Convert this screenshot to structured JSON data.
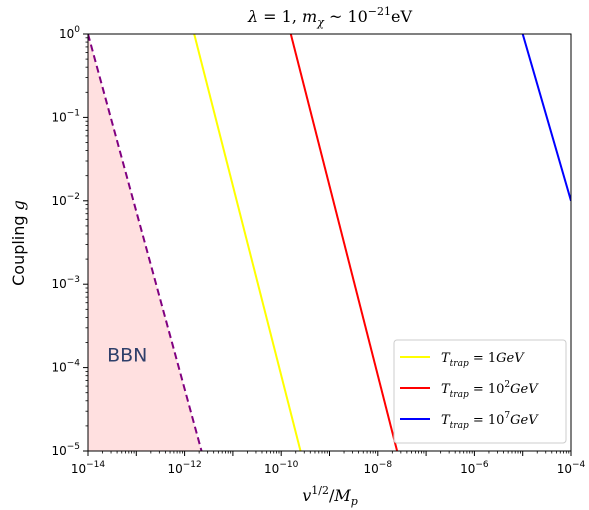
{
  "chart_data": {
    "type": "line",
    "title": {
      "lambda": "λ",
      "eq1": " = 1, ",
      "m": "m",
      "chi": "χ",
      "approx": " ~ 10",
      "exp": "−21",
      "unit": "eV"
    },
    "xlabel": {
      "v": "v",
      "sup": "1/2",
      "slash": "/",
      "M": "M",
      "p": "p"
    },
    "ylabel": {
      "text": "Coupling ",
      "g": "g"
    },
    "xscale": "log",
    "yscale": "log",
    "xlim": [
      1e-14,
      0.0001
    ],
    "ylim": [
      1e-05,
      1
    ],
    "xticks": [
      {
        "value": 1e-14,
        "base": "10",
        "exp": "−14"
      },
      {
        "value": 1e-12,
        "base": "10",
        "exp": "−12"
      },
      {
        "value": 1e-10,
        "base": "10",
        "exp": "−10"
      },
      {
        "value": 1e-08,
        "base": "10",
        "exp": "−8"
      },
      {
        "value": 1e-06,
        "base": "10",
        "exp": "−6"
      },
      {
        "value": 0.0001,
        "base": "10",
        "exp": "−4"
      }
    ],
    "yticks": [
      {
        "value": 1,
        "base": "10",
        "exp": "0"
      },
      {
        "value": 0.1,
        "base": "10",
        "exp": "−1"
      },
      {
        "value": 0.01,
        "base": "10",
        "exp": "−2"
      },
      {
        "value": 0.001,
        "base": "10",
        "exp": "−3"
      },
      {
        "value": 0.0001,
        "base": "10",
        "exp": "−4"
      },
      {
        "value": 1e-05,
        "base": "10",
        "exp": "−5"
      }
    ],
    "grid": false,
    "legend_position": "lower-right",
    "series": [
      {
        "key": "yellow",
        "color": "#ffff00",
        "style": "solid",
        "legend": {
          "T": "T",
          "sub": "trap",
          "eq": " = 1",
          "sup": "",
          "unit": "GeV"
        },
        "x": [
          1.58e-12,
          2.51e-10
        ],
        "y": [
          1,
          1e-05
        ]
      },
      {
        "key": "red",
        "color": "#ff0000",
        "style": "solid",
        "legend": {
          "T": "T",
          "sub": "trap",
          "eq": " = 10",
          "sup": "2",
          "unit": "GeV"
        },
        "x": [
          1.58e-10,
          2.51e-08
        ],
        "y": [
          1,
          1e-05
        ]
      },
      {
        "key": "blue",
        "color": "#0000ff",
        "style": "solid",
        "legend": {
          "T": "T",
          "sub": "trap",
          "eq": " = 10",
          "sup": "7",
          "unit": "GeV"
        },
        "x": [
          1e-05,
          0.0001
        ],
        "y": [
          1,
          0.01
        ]
      },
      {
        "key": "bbn-boundary",
        "color": "#800080",
        "style": "dashed",
        "x": [
          1e-14,
          2.24e-12
        ],
        "y": [
          1,
          1e-05
        ]
      }
    ],
    "shaded_region": {
      "label": "BBN",
      "fill": "#ffe0e0",
      "label_color": "#2f3f6a",
      "label_at": {
        "x": 6.5e-14,
        "y": 0.00014
      },
      "polygon": [
        [
          1e-14,
          1
        ],
        [
          2.24e-12,
          1e-05
        ],
        [
          1e-14,
          1e-05
        ]
      ]
    }
  }
}
